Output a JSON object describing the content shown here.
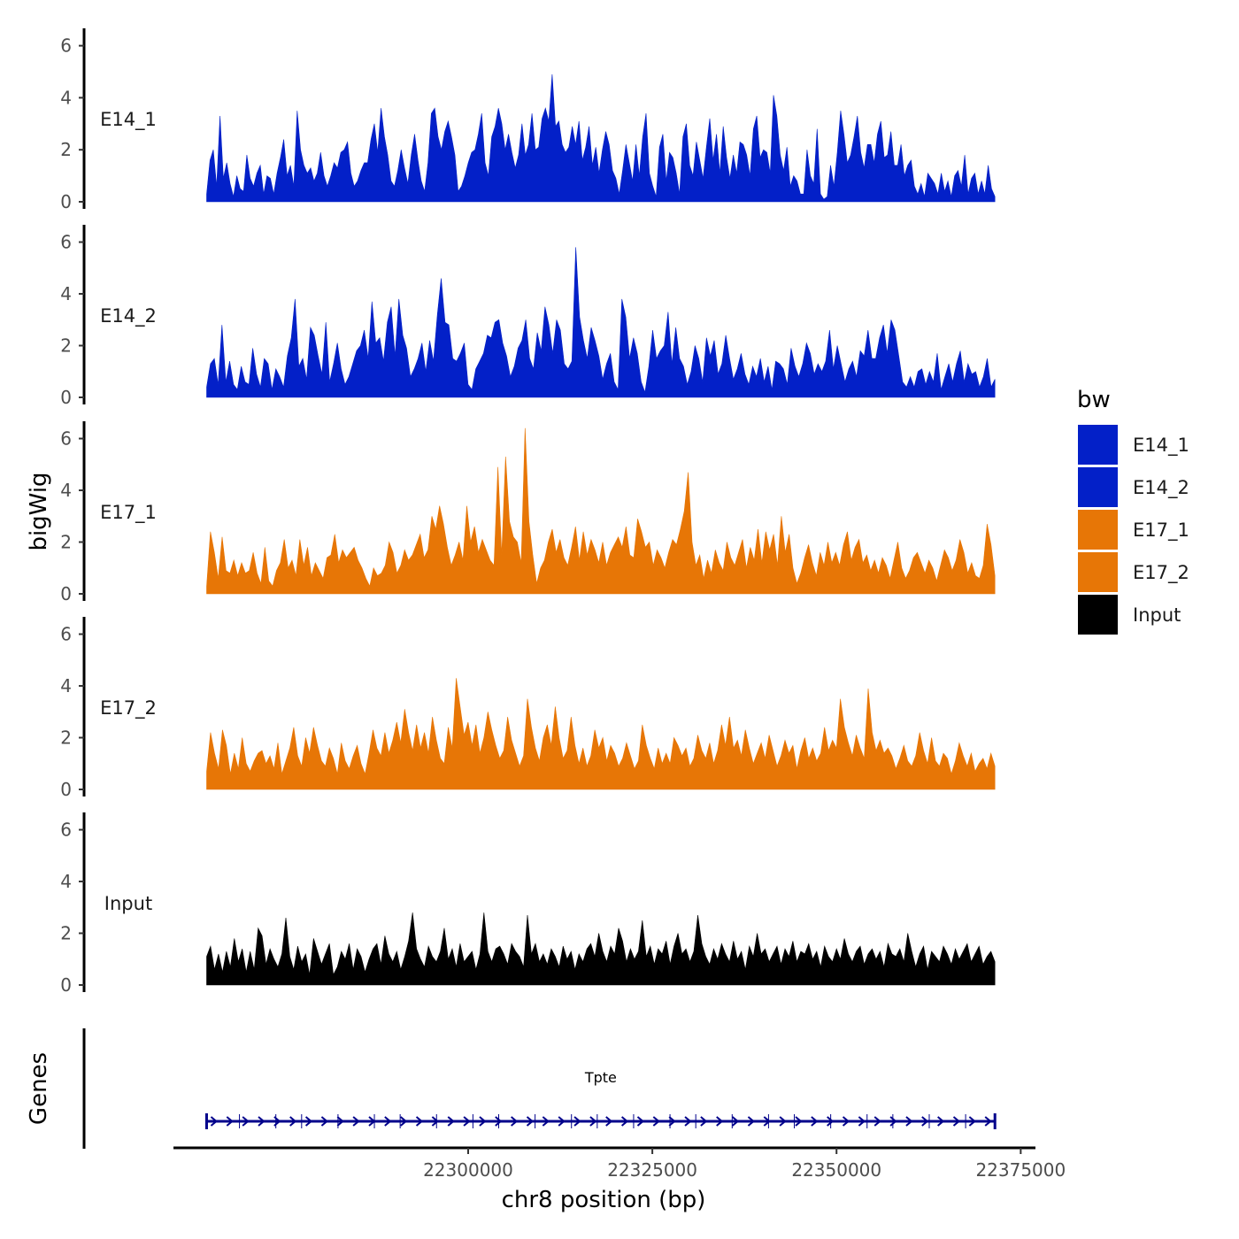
{
  "chart_data": {
    "type": "area",
    "chromosome": "chr8",
    "xlabel": "chr8 position (bp)",
    "ylabel": "bigWig",
    "genes_ylabel": "Genes",
    "xlim": [
      22260000,
      22377000
    ],
    "data_range": [
      22264500,
      22371500
    ],
    "x_ticks": [
      22300000,
      22325000,
      22350000,
      22375000
    ],
    "x_tick_labels": [
      "22300000",
      "22325000",
      "22350000",
      "22375000"
    ],
    "y_ticks": [
      0,
      2,
      4,
      6
    ],
    "ylim": [
      0,
      6.6
    ],
    "legend": {
      "title": "bw",
      "position": "right",
      "entries": [
        {
          "name": "E14_1",
          "color": "#0320c8"
        },
        {
          "name": "E14_2",
          "color": "#0320c8"
        },
        {
          "name": "E17_1",
          "color": "#e77606"
        },
        {
          "name": "E17_2",
          "color": "#e77606"
        },
        {
          "name": "Input",
          "color": "#000000"
        }
      ]
    },
    "series": [
      {
        "name": "E14_1",
        "label": "E14_1",
        "color": "#0320c8",
        "values": [
          0.3,
          1.6,
          2.0,
          0.6,
          3.3,
          0.9,
          1.5,
          0.7,
          0.2,
          1.0,
          0.5,
          0.4,
          1.8,
          0.9,
          0.6,
          1.1,
          1.4,
          0.3,
          1.0,
          0.9,
          0.3,
          1.1,
          1.7,
          2.4,
          1.0,
          1.4,
          0.6,
          3.5,
          2.0,
          1.4,
          1.1,
          1.3,
          0.8,
          1.1,
          1.9,
          1.0,
          0.6,
          1.0,
          1.5,
          1.3,
          1.9,
          2.0,
          2.3,
          1.1,
          0.6,
          0.8,
          1.2,
          1.5,
          1.5,
          2.4,
          3.0,
          1.9,
          3.6,
          2.5,
          1.8,
          0.8,
          0.6,
          1.2,
          2.0,
          1.3,
          0.7,
          1.8,
          2.6,
          1.6,
          0.8,
          0.4,
          1.5,
          3.4,
          3.6,
          2.5,
          2.0,
          2.7,
          3.1,
          2.5,
          1.8,
          0.4,
          0.6,
          1.0,
          1.5,
          1.9,
          2.0,
          2.6,
          3.4,
          1.5,
          1.0,
          2.5,
          2.9,
          3.6,
          3.0,
          2.0,
          2.6,
          1.9,
          1.3,
          1.8,
          3.0,
          1.8,
          2.2,
          3.4,
          2.0,
          2.1,
          3.2,
          3.6,
          3.1,
          4.9,
          2.9,
          3.1,
          2.2,
          1.9,
          2.1,
          2.9,
          2.2,
          3.1,
          1.6,
          2.1,
          2.9,
          1.4,
          2.1,
          1.1,
          2.0,
          2.7,
          2.2,
          1.2,
          0.9,
          0.3,
          1.2,
          2.2,
          1.5,
          0.8,
          2.2,
          1.0,
          2.5,
          3.4,
          1.1,
          0.6,
          0.2,
          2.1,
          2.6,
          0.8,
          1.9,
          1.7,
          1.1,
          0.3,
          2.5,
          3.0,
          1.4,
          1.0,
          2.3,
          1.6,
          0.9,
          2.1,
          3.2,
          1.6,
          2.6,
          1.1,
          2.9,
          1.7,
          0.9,
          1.8,
          1.1,
          2.3,
          2.2,
          1.8,
          1.0,
          2.8,
          3.3,
          1.7,
          2.0,
          1.9,
          1.1,
          4.1,
          3.3,
          1.8,
          1.2,
          2.1,
          0.6,
          1.0,
          0.8,
          0.3,
          0.3,
          2.0,
          1.0,
          0.7,
          2.8,
          0.3,
          0.1,
          0.2,
          1.4,
          0.6,
          1.9,
          3.5,
          2.6,
          1.5,
          1.8,
          2.5,
          3.3,
          1.9,
          1.3,
          2.2,
          2.2,
          1.5,
          2.6,
          3.1,
          1.7,
          1.8,
          2.7,
          1.4,
          1.4,
          2.2,
          1.0,
          1.4,
          1.6,
          0.6,
          0.3,
          0.7,
          0.2,
          1.1,
          0.9,
          0.7,
          0.3,
          1.1,
          0.4,
          0.8,
          0.2,
          1.0,
          1.2,
          0.6,
          1.8,
          0.3,
          0.9,
          1.1,
          0.3,
          0.8,
          0.3,
          1.4,
          0.5,
          0.2
        ]
      },
      {
        "name": "E14_2",
        "label": "E14_2",
        "color": "#0320c8",
        "values": [
          0.4,
          1.3,
          1.5,
          0.5,
          2.8,
          0.6,
          1.4,
          0.5,
          0.3,
          1.2,
          0.6,
          0.5,
          1.9,
          0.9,
          0.4,
          1.5,
          1.3,
          0.3,
          1.1,
          0.8,
          0.4,
          1.6,
          2.3,
          3.8,
          1.2,
          1.5,
          0.7,
          2.7,
          2.4,
          1.6,
          0.9,
          2.9,
          0.6,
          1.3,
          2.1,
          1.1,
          0.5,
          0.8,
          1.3,
          1.8,
          2.0,
          2.6,
          1.5,
          3.7,
          2.1,
          2.3,
          1.4,
          2.9,
          3.5,
          1.6,
          3.8,
          2.4,
          1.9,
          0.8,
          1.1,
          1.5,
          2.1,
          1.0,
          2.2,
          1.4,
          3.2,
          4.6,
          2.9,
          2.8,
          1.5,
          1.4,
          1.7,
          2.1,
          0.5,
          0.3,
          1.1,
          1.4,
          1.7,
          2.4,
          2.3,
          2.9,
          3.0,
          2.1,
          1.6,
          0.8,
          1.2,
          1.9,
          2.2,
          3.0,
          1.5,
          1.1,
          2.5,
          1.8,
          3.5,
          2.8,
          1.7,
          3.0,
          2.6,
          1.3,
          1.1,
          1.4,
          5.8,
          3.1,
          2.2,
          1.5,
          2.7,
          2.2,
          1.6,
          0.7,
          1.3,
          1.7,
          0.6,
          0.3,
          3.8,
          3.1,
          1.5,
          2.3,
          1.7,
          0.6,
          0.2,
          1.2,
          2.6,
          1.5,
          1.8,
          2.0,
          3.3,
          1.3,
          2.7,
          1.5,
          1.2,
          0.5,
          1.0,
          2.0,
          1.5,
          0.6,
          2.3,
          1.6,
          2.2,
          0.9,
          1.3,
          2.4,
          1.5,
          0.7,
          1.1,
          1.7,
          0.9,
          0.5,
          1.2,
          0.8,
          1.5,
          0.6,
          1.2,
          0.3,
          1.4,
          1.3,
          1.1,
          0.5,
          1.9,
          1.2,
          0.8,
          1.3,
          2.1,
          1.7,
          0.9,
          1.3,
          1.0,
          1.4,
          2.6,
          1.1,
          2.0,
          1.3,
          0.6,
          1.1,
          1.4,
          0.8,
          1.8,
          1.6,
          2.6,
          1.5,
          1.5,
          2.3,
          2.8,
          1.7,
          3.0,
          2.6,
          1.6,
          0.6,
          0.4,
          0.8,
          0.4,
          1.0,
          1.1,
          0.5,
          1.0,
          0.6,
          1.7,
          0.3,
          0.8,
          1.3,
          0.6,
          1.3,
          1.8,
          0.6,
          1.3,
          0.9,
          1.0,
          0.4,
          0.8,
          1.5,
          0.4,
          0.7
        ]
      },
      {
        "name": "E17_1",
        "label": "E17_1",
        "color": "#e77606",
        "values": [
          0.3,
          2.4,
          1.6,
          0.6,
          2.2,
          0.9,
          0.8,
          1.3,
          0.7,
          1.2,
          0.8,
          0.9,
          1.6,
          0.8,
          0.4,
          1.8,
          0.5,
          0.3,
          0.9,
          1.2,
          2.1,
          1.0,
          1.3,
          0.7,
          2.1,
          1.1,
          1.8,
          0.7,
          1.2,
          0.9,
          0.6,
          1.4,
          1.5,
          2.3,
          1.2,
          1.7,
          1.4,
          1.6,
          1.8,
          1.3,
          1.0,
          0.6,
          0.3,
          1.0,
          0.7,
          0.8,
          1.1,
          2.0,
          1.6,
          0.8,
          1.1,
          1.7,
          1.3,
          1.5,
          1.9,
          2.3,
          1.4,
          1.7,
          3.0,
          2.5,
          3.4,
          2.7,
          1.8,
          1.1,
          1.5,
          2.0,
          1.3,
          3.4,
          2.0,
          2.6,
          1.6,
          2.1,
          1.7,
          1.3,
          1.1,
          4.9,
          1.5,
          5.3,
          2.8,
          2.2,
          2.0,
          1.2,
          6.4,
          2.8,
          1.5,
          0.4,
          1.0,
          1.3,
          2.0,
          2.5,
          1.6,
          2.1,
          1.4,
          1.1,
          1.8,
          2.6,
          1.3,
          2.4,
          1.5,
          2.1,
          1.7,
          1.2,
          2.0,
          1.1,
          1.6,
          1.9,
          2.2,
          1.8,
          2.6,
          1.5,
          1.4,
          2.9,
          2.4,
          1.8,
          2.0,
          1.1,
          1.7,
          1.4,
          1.0,
          1.6,
          2.1,
          1.9,
          2.5,
          3.2,
          4.7,
          2.0,
          1.1,
          1.5,
          0.6,
          1.3,
          0.8,
          1.7,
          1.2,
          0.9,
          2.0,
          1.4,
          1.1,
          1.6,
          2.1,
          1.0,
          1.8,
          1.3,
          2.5,
          1.2,
          2.4,
          1.7,
          2.3,
          1.1,
          3.0,
          1.6,
          2.3,
          1.0,
          0.4,
          0.8,
          1.4,
          1.9,
          1.2,
          0.7,
          1.6,
          1.1,
          2.0,
          1.2,
          1.6,
          1.1,
          1.9,
          2.4,
          1.3,
          1.8,
          2.1,
          1.2,
          1.5,
          0.9,
          1.3,
          0.8,
          1.4,
          1.1,
          0.6,
          1.3,
          2.0,
          1.0,
          0.6,
          0.9,
          1.4,
          1.6,
          1.2,
          0.8,
          1.3,
          1.0,
          0.5,
          1.1,
          1.7,
          1.4,
          0.9,
          1.3,
          2.1,
          1.6,
          0.8,
          1.2,
          0.7,
          0.6,
          1.1,
          2.7,
          1.9,
          0.7
        ]
      },
      {
        "name": "E17_2",
        "label": "E17_2",
        "color": "#e77606",
        "values": [
          0.7,
          2.2,
          1.4,
          0.8,
          2.3,
          1.7,
          0.6,
          1.4,
          0.8,
          2.0,
          1.0,
          0.7,
          1.1,
          1.4,
          1.5,
          1.0,
          1.3,
          0.8,
          1.8,
          0.6,
          1.1,
          1.6,
          2.4,
          1.3,
          0.9,
          2.0,
          1.4,
          2.4,
          1.7,
          1.1,
          0.9,
          1.6,
          1.2,
          0.6,
          1.8,
          1.1,
          0.8,
          1.3,
          1.7,
          1.0,
          0.6,
          1.4,
          2.3,
          1.6,
          1.3,
          2.2,
          1.4,
          1.9,
          2.6,
          1.8,
          3.1,
          2.2,
          1.5,
          2.5,
          1.6,
          2.2,
          1.4,
          2.8,
          1.9,
          1.2,
          1.0,
          2.4,
          1.6,
          4.3,
          3.2,
          2.1,
          2.6,
          1.7,
          2.5,
          1.4,
          2.0,
          3.0,
          2.3,
          1.7,
          1.2,
          1.5,
          2.8,
          1.9,
          1.4,
          0.9,
          1.3,
          3.5,
          2.4,
          1.6,
          1.1,
          2.0,
          2.5,
          1.7,
          3.2,
          2.0,
          1.2,
          1.5,
          2.8,
          1.7,
          1.0,
          1.6,
          0.9,
          1.3,
          2.3,
          1.6,
          2.0,
          1.1,
          1.7,
          1.4,
          0.9,
          1.2,
          1.8,
          1.3,
          0.8,
          1.1,
          2.5,
          1.7,
          1.2,
          0.8,
          1.6,
          1.0,
          1.4,
          1.0,
          2.0,
          1.7,
          1.3,
          1.6,
          0.9,
          1.2,
          2.1,
          1.5,
          1.2,
          1.8,
          1.0,
          1.5,
          2.5,
          1.7,
          2.8,
          1.6,
          1.9,
          1.3,
          2.3,
          1.6,
          1.0,
          1.4,
          1.8,
          1.2,
          2.1,
          1.5,
          0.9,
          1.3,
          1.9,
          1.4,
          1.7,
          0.8,
          1.5,
          2.0,
          1.2,
          1.6,
          1.1,
          1.4,
          2.4,
          1.5,
          1.9,
          1.6,
          3.5,
          2.4,
          1.8,
          1.3,
          2.1,
          1.6,
          1.2,
          3.9,
          2.2,
          1.5,
          1.9,
          1.4,
          1.6,
          1.3,
          0.8,
          1.2,
          1.7,
          1.1,
          0.9,
          1.3,
          2.2,
          1.5,
          1.0,
          2.0,
          1.1,
          0.9,
          1.4,
          1.2,
          0.6,
          1.1,
          1.8,
          1.3,
          0.9,
          1.4,
          0.7,
          1.0,
          1.2,
          0.8,
          1.4,
          0.9
        ]
      },
      {
        "name": "Input",
        "label": "Input",
        "color": "#000000",
        "values": [
          1.1,
          1.5,
          0.6,
          1.2,
          0.5,
          1.3,
          0.7,
          1.8,
          0.9,
          1.4,
          0.5,
          1.3,
          0.6,
          2.2,
          1.9,
          0.8,
          1.4,
          1.0,
          0.7,
          1.2,
          2.6,
          1.1,
          0.6,
          1.5,
          0.9,
          1.2,
          0.4,
          1.8,
          1.3,
          0.8,
          1.2,
          1.6,
          0.4,
          0.7,
          1.3,
          1.0,
          1.6,
          0.6,
          1.4,
          1.1,
          0.5,
          1.0,
          1.4,
          1.6,
          0.8,
          1.9,
          1.2,
          0.9,
          1.3,
          0.6,
          1.1,
          1.7,
          2.8,
          1.4,
          1.0,
          0.7,
          1.5,
          1.1,
          0.9,
          1.3,
          2.2,
          1.0,
          1.4,
          0.7,
          1.6,
          0.9,
          1.1,
          1.3,
          0.6,
          1.2,
          2.8,
          1.3,
          0.9,
          1.4,
          1.5,
          1.2,
          0.8,
          1.6,
          1.3,
          1.1,
          0.7,
          2.7,
          1.2,
          1.6,
          0.9,
          1.2,
          0.8,
          1.4,
          1.1,
          0.7,
          1.5,
          1.0,
          1.3,
          0.6,
          1.2,
          0.9,
          1.4,
          1.6,
          1.1,
          2.0,
          1.3,
          0.9,
          1.5,
          1.2,
          2.2,
          1.7,
          0.9,
          1.4,
          1.0,
          1.3,
          2.5,
          1.1,
          1.5,
          0.8,
          1.4,
          1.2,
          1.7,
          0.8,
          1.5,
          2.0,
          1.2,
          1.4,
          0.9,
          1.3,
          2.7,
          1.6,
          1.1,
          0.8,
          1.4,
          1.0,
          1.6,
          1.2,
          0.9,
          1.7,
          1.0,
          1.3,
          0.6,
          1.5,
          1.1,
          2.0,
          1.2,
          1.4,
          0.9,
          1.2,
          1.5,
          0.8,
          1.4,
          1.1,
          1.7,
          0.9,
          1.3,
          1.2,
          1.6,
          1.0,
          1.3,
          0.7,
          1.5,
          1.1,
          0.9,
          1.4,
          1.0,
          1.8,
          1.2,
          0.9,
          1.3,
          1.5,
          0.8,
          1.2,
          1.4,
          1.0,
          1.3,
          0.7,
          1.6,
          1.2,
          1.1,
          1.4,
          0.9,
          2.0,
          1.3,
          0.7,
          1.2,
          1.5,
          0.6,
          1.3,
          1.1,
          0.9,
          1.5,
          1.2,
          0.8,
          1.4,
          1.0,
          1.3,
          1.6,
          0.9,
          1.2,
          1.5,
          0.8,
          1.1,
          1.3,
          0.9
        ]
      }
    ],
    "genes": [
      {
        "name": "Tpte",
        "strand": "+",
        "start": 22264500,
        "end": 22371500,
        "color": "#00008b"
      }
    ]
  }
}
